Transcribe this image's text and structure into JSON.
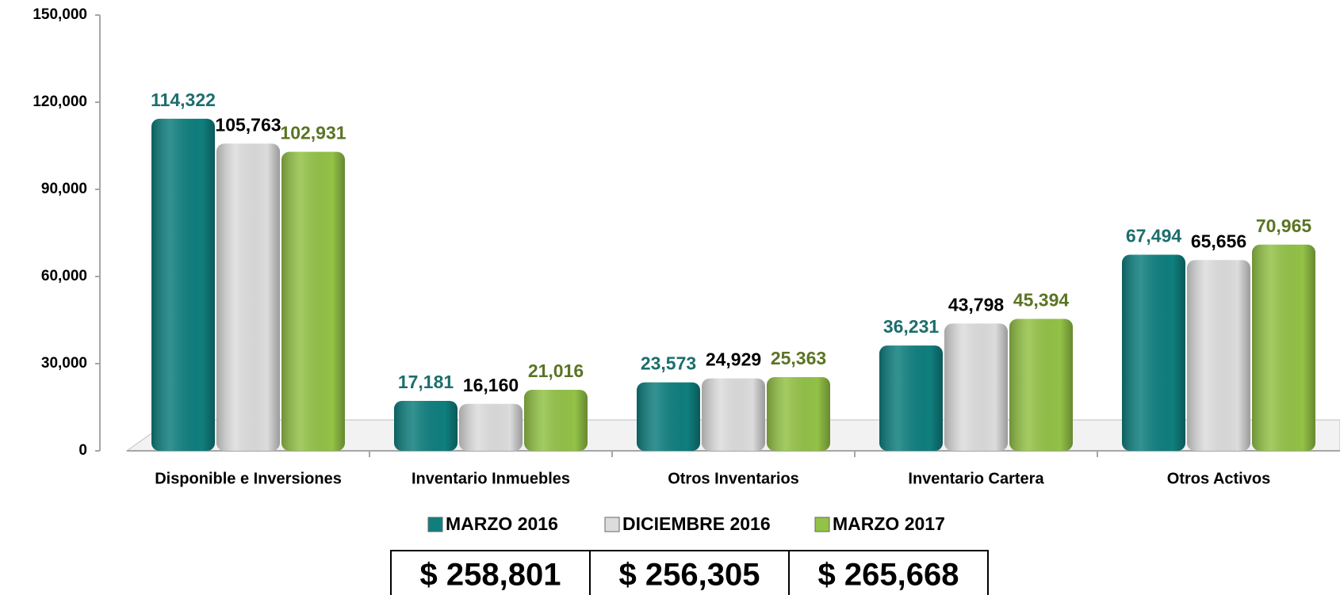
{
  "chart_data": {
    "type": "bar",
    "categories": [
      "Disponible e Inversiones",
      "Inventario Inmuebles",
      "Otros Inventarios",
      "Inventario Cartera",
      "Otros Activos"
    ],
    "series": [
      {
        "name": "MARZO 2016",
        "color": "#0f7f7e",
        "label_color": "#1c6e6d",
        "values": [
          114322,
          17181,
          23573,
          36231,
          67494
        ],
        "value_labels": [
          "114,322",
          "17,181",
          "23,573",
          "36,231",
          "67,494"
        ]
      },
      {
        "name": "DICIEMBRE 2016",
        "color": "#dcdcdc",
        "label_color": "#000000",
        "values": [
          105763,
          16160,
          24929,
          43798,
          65656
        ],
        "value_labels": [
          "105,763",
          "16,160",
          "24,929",
          "43,798",
          "65,656"
        ]
      },
      {
        "name": "MARZO 2017",
        "color": "#93c247",
        "label_color": "#5b7424",
        "values": [
          102931,
          21016,
          25363,
          45394,
          70965
        ],
        "value_labels": [
          "102,931",
          "21,016",
          "25,363",
          "45,394",
          "70,965"
        ]
      }
    ],
    "ylim": [
      0,
      150000
    ],
    "yticks": [
      0,
      {
        "value": 30000,
        "label": "30,000"
      },
      {
        "value": 60000,
        "label": "60,000"
      },
      {
        "value": 90000,
        "label": "90,000"
      },
      {
        "value": 120000,
        "label": "120,000"
      },
      {
        "value": 150000,
        "label": "150,000"
      }
    ],
    "legend": "bottom"
  },
  "totals_table": {
    "cells": [
      "$ 258,801",
      "$ 256,305",
      "$ 265,668"
    ]
  }
}
